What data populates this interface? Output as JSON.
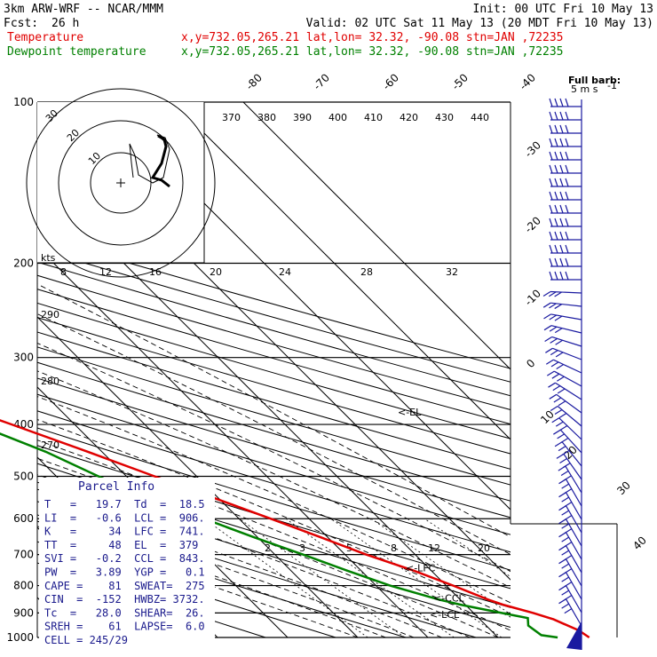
{
  "header": {
    "model": "3km ARW-WRF -- NCAR/MMM",
    "init": "Init: 00 UTC Fri 10 May 13",
    "fcst_label": "Fcst:",
    "fcst_value": "26 h",
    "valid": "Valid: 02 UTC Sat 11 May 13 (20 MDT Fri 10 May 13)",
    "temp_label": "Temperature",
    "temp_loc": "x,y=732.05,265.21   lat,lon= 32.32, -90.08   stn=JAN ,72235",
    "dew_label": "Dewpoint temperature",
    "dew_loc": "x,y=732.05,265.21   lat,lon= 32.32, -90.08   stn=JAN ,72235"
  },
  "colors": {
    "temperature": "#e00000",
    "dewpoint": "#008000",
    "parcel_text": "#1a1a8c",
    "wind_barb": "#1a1aa0"
  },
  "chart_data": {
    "type": "line",
    "subtype": "skew-T log-P sounding",
    "pressure_levels": [
      100,
      200,
      300,
      400,
      500,
      600,
      700,
      800,
      900,
      1000
    ],
    "pressure_range": [
      100,
      1000
    ],
    "log_pressure": true,
    "temperature_axis_labels": [
      "-80",
      "-70",
      "-60",
      "-50",
      "-40",
      "-30",
      "-20",
      "-10",
      "0",
      "10",
      "20",
      "30",
      "40"
    ],
    "temperature_axis_values": [
      -80,
      -70,
      -60,
      -50,
      -40,
      -30,
      -20,
      -10,
      0,
      10,
      20,
      30,
      40
    ],
    "theta_labels": [
      "370",
      "380",
      "390",
      "400",
      "410",
      "420",
      "430",
      "440"
    ],
    "theta_labels_lower": [
      "290",
      "280",
      "270"
    ],
    "mixing_ratio_labels": [
      "2",
      "3",
      "5",
      "8",
      "12",
      "20"
    ],
    "series": [
      {
        "name": "Temperature",
        "pressure": [
          1000,
          970,
          925,
          900,
          870,
          850,
          800,
          750,
          700,
          650,
          600,
          550,
          500,
          450,
          400,
          350,
          300,
          250,
          200,
          175,
          150,
          130,
          115,
          100
        ],
        "values": [
          23.0,
          22.5,
          20.5,
          18.5,
          15.5,
          14.0,
          11.0,
          7.5,
          3.0,
          -1.0,
          -5.5,
          -10.5,
          -16.0,
          -22.0,
          -29.0,
          -37.0,
          -45.5,
          -54.5,
          -60.5,
          -60.0,
          -56.0,
          -52.0,
          -50.0,
          -48.0
        ]
      },
      {
        "name": "Dewpoint temperature",
        "pressure": [
          1000,
          990,
          950,
          920,
          900,
          870,
          850,
          800,
          750,
          700,
          650,
          600,
          550,
          500,
          450,
          400,
          350,
          300,
          250,
          200,
          180,
          160,
          140,
          120,
          100
        ],
        "values": [
          18.5,
          16.5,
          16.0,
          17.0,
          14.0,
          9.5,
          7.0,
          2.0,
          -2.0,
          -6.0,
          -10.5,
          -15.0,
          -20.0,
          -24.0,
          -28.0,
          -34.0,
          -40.0,
          -47.0,
          -57.0,
          -67.0,
          -68.0,
          -71.0,
          -75.0,
          -77.0,
          -78.0
        ]
      }
    ],
    "annotations": [
      {
        "text": "<-EL",
        "pressure": 379
      },
      {
        "text": "<-LFC",
        "pressure": 741
      },
      {
        "text": "<-CCL",
        "pressure": 843
      },
      {
        "text": "<-LCL",
        "pressure": 906
      }
    ],
    "hodograph": {
      "units_label": "kts",
      "ring_labels": [
        "30",
        "20",
        "10"
      ],
      "speed_labels": [
        "8",
        "12",
        "16",
        "20",
        "24",
        "28",
        "32"
      ]
    },
    "wind_barbs": {
      "legend": "Full barb: 5 m s",
      "legend_line1": "Full barb:",
      "legend_line2": "5 m s",
      "legend_exp": "-1",
      "count": 40
    }
  },
  "parcel_info": {
    "title": "Parcel Info",
    "rows": [
      "T   =   19.7  Td  =  18.5",
      "LI  =   -0.6  LCL =  906.",
      "K   =     34  LFC =  741.",
      "TT  =     48  EL  =  379",
      "SVI =   -0.2  CCL =  843.",
      "PW  =   3.89  YGP =   0.1",
      "CAPE =    81  SWEAT=  275",
      "CIN  =  -152  HWBZ= 3732.",
      "Tc  =   28.0  SHEAR=  26.",
      "SREH =    61  LAPSE=  6.0",
      "CELL = 245/29"
    ]
  }
}
